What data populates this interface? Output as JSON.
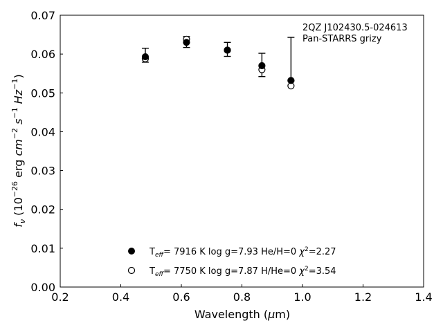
{
  "chart_data": {
    "type": "scatter",
    "xlabel": "Wavelength (μm)",
    "ylabel": "f_ν (10^-26 erg cm^-2 s^-1 Hz^-1)",
    "xlim": [
      0.2,
      1.4
    ],
    "ylim": [
      0.0,
      0.07
    ],
    "xticks": [
      "0.2",
      "0.4",
      "0.6",
      "0.8",
      "1.0",
      "1.2",
      "1.4"
    ],
    "yticks": [
      "0.00",
      "0.01",
      "0.02",
      "0.03",
      "0.04",
      "0.05",
      "0.06",
      "0.07"
    ],
    "grid": false,
    "annotation": [
      "2QZ J102430.5-024613",
      "Pan-STARRS grizy"
    ],
    "observed": {
      "x": [
        0.481,
        0.617,
        0.752,
        0.866,
        0.962
      ],
      "y": [
        0.0597,
        0.0631,
        0.0612,
        0.0572,
        0.0587
      ],
      "err": [
        0.0018,
        0.0014,
        0.0018,
        0.003,
        0.0056
      ]
    },
    "series": [
      {
        "marker": "filled",
        "x": [
          0.481,
          0.617,
          0.752,
          0.866,
          0.962
        ],
        "y": [
          0.0593,
          0.063,
          0.061,
          0.057,
          0.0532
        ]
      },
      {
        "marker": "open",
        "x": [
          0.481,
          0.617,
          0.752,
          0.866,
          0.962
        ],
        "y": [
          0.0588,
          0.0638,
          0.061,
          0.056,
          0.0518
        ]
      }
    ],
    "legend": [
      {
        "marker": "filled",
        "teff_value": "=  7916 K  log g=7.93  He/H=0  ",
        "chi_value": "=2.27"
      },
      {
        "marker": "open",
        "teff_value": "=  7750 K  log g=7.87  H/He=0  ",
        "chi_value": "=3.54"
      }
    ],
    "legend_placement": "bottom-center"
  }
}
